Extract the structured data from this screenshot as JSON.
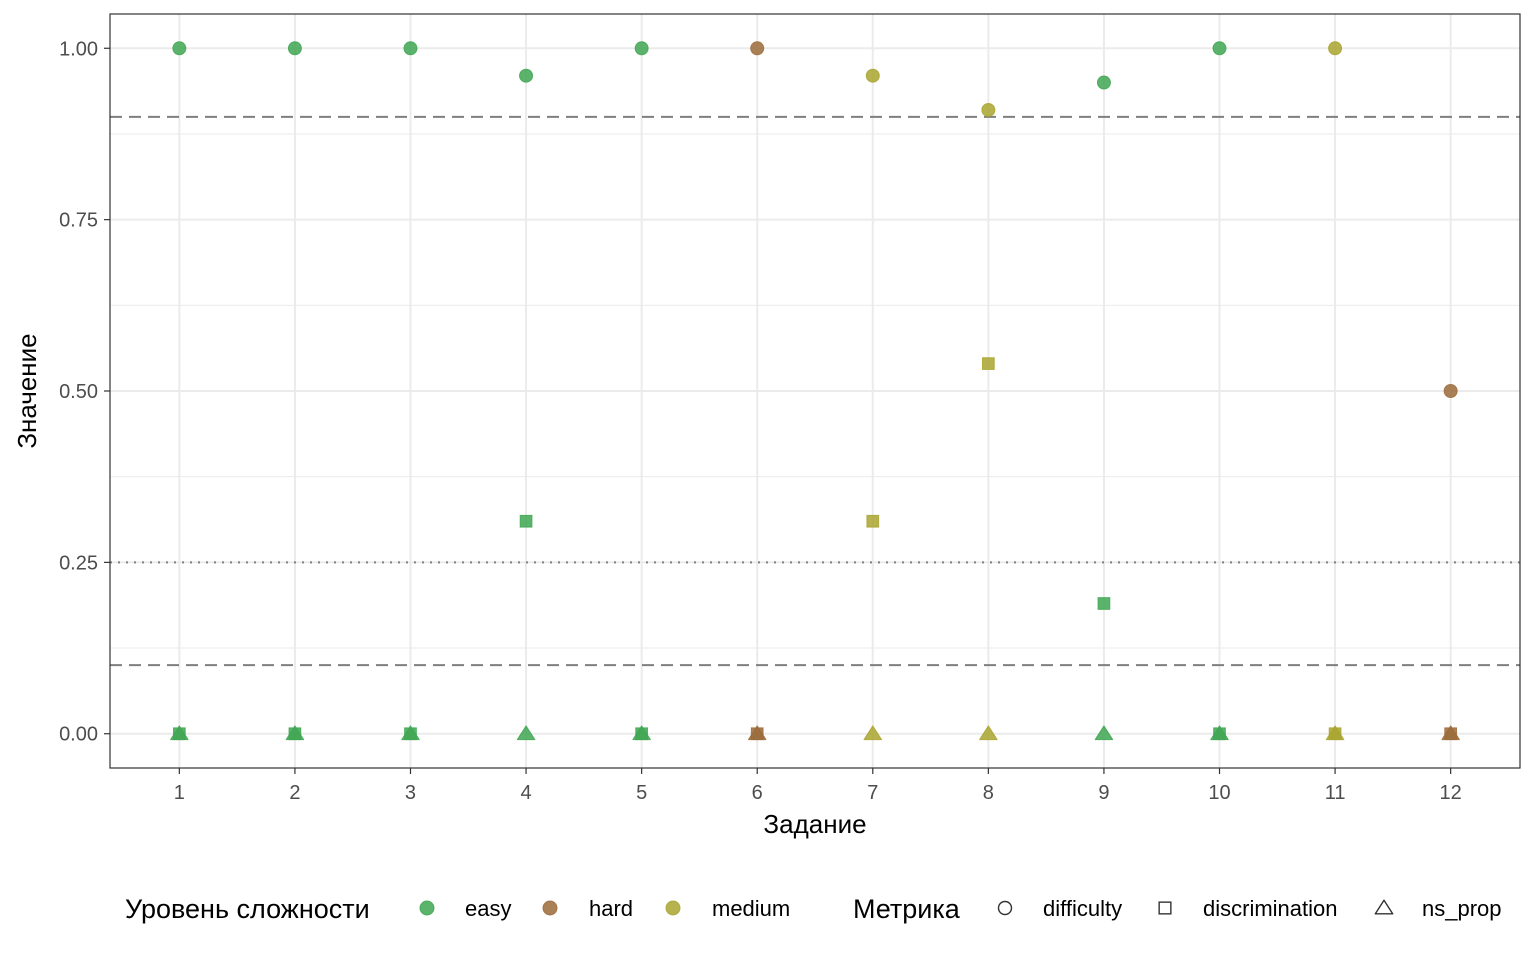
{
  "chart_data": {
    "type": "scatter",
    "xlabel": "Задание",
    "ylabel": "Значение",
    "x_ticks": [
      "1",
      "2",
      "3",
      "4",
      "5",
      "6",
      "7",
      "8",
      "9",
      "10",
      "11",
      "12"
    ],
    "y_ticks": [
      "0.00",
      "0.25",
      "0.50",
      "0.75",
      "1.00"
    ],
    "xlim": [
      0.4,
      12.6
    ],
    "ylim": [
      -0.05,
      1.05
    ],
    "grid": true,
    "reference_lines": [
      {
        "y": 0.9,
        "style": "dashed"
      },
      {
        "y": 0.1,
        "style": "dashed"
      },
      {
        "y": 0.25,
        "style": "dotted"
      }
    ],
    "legend_placement": "bottom",
    "level_legend": {
      "title": "Уровень сложности",
      "entries": [
        {
          "label": "easy",
          "key": "easy"
        },
        {
          "label": "hard",
          "key": "hard"
        },
        {
          "label": "medium",
          "key": "medium"
        }
      ]
    },
    "metric_legend": {
      "title": "Метрика",
      "entries": [
        {
          "label": "difficulty",
          "key": "difficulty"
        },
        {
          "label": "discrimination",
          "key": "discrimination"
        },
        {
          "label": "ns_prop",
          "key": "ns_prop"
        }
      ]
    },
    "colors": {
      "easy": "#3fa652",
      "hard": "#9b6b3a",
      "medium": "#a9a42f"
    },
    "points": [
      {
        "x": 1,
        "y": 1.0,
        "level": "easy",
        "metric": "difficulty"
      },
      {
        "x": 1,
        "y": 0.0,
        "level": "easy",
        "metric": "discrimination"
      },
      {
        "x": 1,
        "y": 0.0,
        "level": "easy",
        "metric": "ns_prop"
      },
      {
        "x": 2,
        "y": 1.0,
        "level": "easy",
        "metric": "difficulty"
      },
      {
        "x": 2,
        "y": 0.0,
        "level": "easy",
        "metric": "discrimination"
      },
      {
        "x": 2,
        "y": 0.0,
        "level": "easy",
        "metric": "ns_prop"
      },
      {
        "x": 3,
        "y": 1.0,
        "level": "easy",
        "metric": "difficulty"
      },
      {
        "x": 3,
        "y": 0.0,
        "level": "easy",
        "metric": "discrimination"
      },
      {
        "x": 3,
        "y": 0.0,
        "level": "easy",
        "metric": "ns_prop"
      },
      {
        "x": 4,
        "y": 0.96,
        "level": "easy",
        "metric": "difficulty"
      },
      {
        "x": 4,
        "y": 0.31,
        "level": "easy",
        "metric": "discrimination"
      },
      {
        "x": 4,
        "y": 0.0,
        "level": "easy",
        "metric": "ns_prop"
      },
      {
        "x": 5,
        "y": 1.0,
        "level": "easy",
        "metric": "difficulty"
      },
      {
        "x": 5,
        "y": 0.0,
        "level": "easy",
        "metric": "discrimination"
      },
      {
        "x": 5,
        "y": 0.0,
        "level": "easy",
        "metric": "ns_prop"
      },
      {
        "x": 6,
        "y": 1.0,
        "level": "hard",
        "metric": "difficulty"
      },
      {
        "x": 6,
        "y": 0.0,
        "level": "hard",
        "metric": "discrimination"
      },
      {
        "x": 6,
        "y": 0.0,
        "level": "hard",
        "metric": "ns_prop"
      },
      {
        "x": 7,
        "y": 0.96,
        "level": "medium",
        "metric": "difficulty"
      },
      {
        "x": 7,
        "y": 0.31,
        "level": "medium",
        "metric": "discrimination"
      },
      {
        "x": 7,
        "y": 0.0,
        "level": "medium",
        "metric": "ns_prop"
      },
      {
        "x": 8,
        "y": 0.91,
        "level": "medium",
        "metric": "difficulty"
      },
      {
        "x": 8,
        "y": 0.54,
        "level": "medium",
        "metric": "discrimination"
      },
      {
        "x": 8,
        "y": 0.0,
        "level": "medium",
        "metric": "ns_prop"
      },
      {
        "x": 9,
        "y": 0.95,
        "level": "easy",
        "metric": "difficulty"
      },
      {
        "x": 9,
        "y": 0.19,
        "level": "easy",
        "metric": "discrimination"
      },
      {
        "x": 9,
        "y": 0.0,
        "level": "easy",
        "metric": "ns_prop"
      },
      {
        "x": 10,
        "y": 1.0,
        "level": "easy",
        "metric": "difficulty"
      },
      {
        "x": 10,
        "y": 0.0,
        "level": "easy",
        "metric": "discrimination"
      },
      {
        "x": 10,
        "y": 0.0,
        "level": "easy",
        "metric": "ns_prop"
      },
      {
        "x": 11,
        "y": 1.0,
        "level": "medium",
        "metric": "difficulty"
      },
      {
        "x": 11,
        "y": 0.0,
        "level": "medium",
        "metric": "discrimination"
      },
      {
        "x": 11,
        "y": 0.0,
        "level": "medium",
        "metric": "ns_prop"
      },
      {
        "x": 12,
        "y": 0.5,
        "level": "hard",
        "metric": "difficulty"
      },
      {
        "x": 12,
        "y": 0.0,
        "level": "hard",
        "metric": "discrimination"
      },
      {
        "x": 12,
        "y": 0.0,
        "level": "hard",
        "metric": "ns_prop"
      }
    ]
  }
}
